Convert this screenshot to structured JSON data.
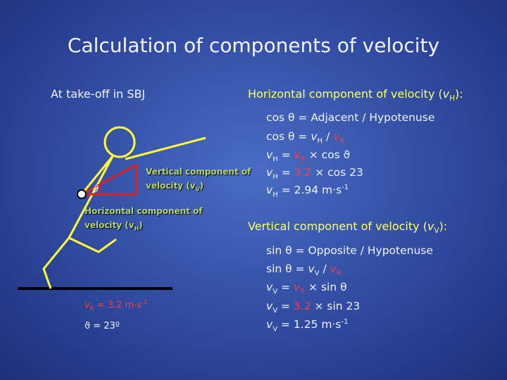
{
  "title": "Calculation of components of velocity",
  "left": {
    "heading": "At take-off in SBJ",
    "vertical_label": [
      "Vertical component of",
      "velocity (v",
      "V",
      ")"
    ],
    "horizontal_label": [
      "Horizontal component of",
      "velocity (v",
      "H",
      ")"
    ],
    "angle_symbol": "ϑ",
    "velocity": [
      "v",
      "R",
      " = 3.2 m·s",
      "-1"
    ],
    "angle": "ϑ  = 23º"
  },
  "horizontal": {
    "heading": [
      "Horizontal component of velocity (",
      "v",
      "H",
      "):"
    ],
    "lines": [
      [
        "cos θ = Adjacent / Hypotenuse"
      ],
      [
        "cos θ = ",
        "v",
        "H",
        " / ",
        "v",
        "R"
      ],
      [
        "v",
        "H",
        " = ",
        "v",
        "R",
        " × cos ϑ"
      ],
      [
        "v",
        "H",
        " = ",
        "3.2",
        " × cos 23"
      ],
      [
        "v",
        "H",
        " = 2.94 m·s",
        "-1"
      ]
    ]
  },
  "vertical": {
    "heading": [
      "Vertical component of velocity (",
      "v",
      "V",
      "):"
    ],
    "lines": [
      [
        "sin θ = Opposite / Hypotenuse"
      ],
      [
        "sin θ = ",
        "v",
        "V",
        " / ",
        "v",
        "R"
      ],
      [
        "v",
        "V",
        " = ",
        "v",
        "R",
        " × sin θ"
      ],
      [
        "v",
        "V",
        " = ",
        "3.2",
        " × sin 23"
      ],
      [
        "v",
        "V",
        " = 1.25 m·s",
        "-1"
      ]
    ]
  }
}
